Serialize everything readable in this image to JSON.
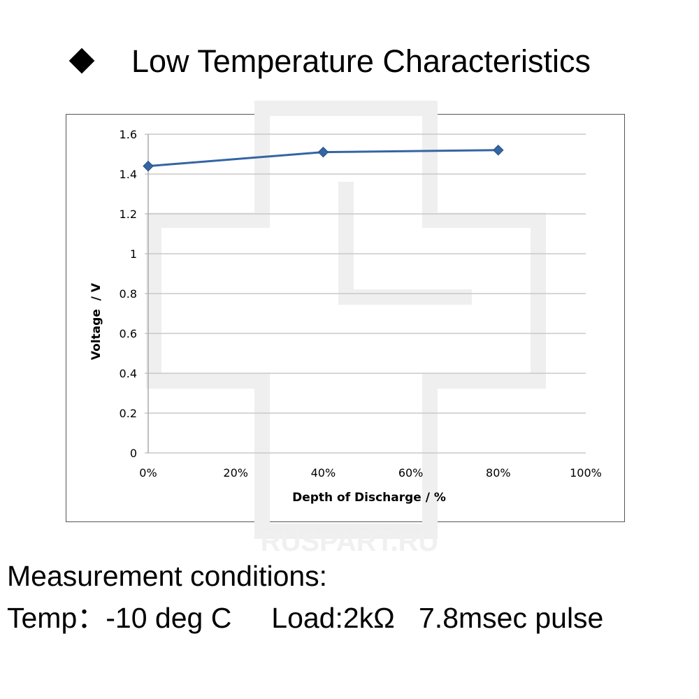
{
  "title": "Low Temperature Characteristics",
  "bullet_icon": "diamond-bullet-icon",
  "watermark": "RUSPART.RU",
  "conditions": {
    "heading": "Measurement conditions:",
    "line": "Temp：-10 deg C     Load:2kΩ   7.8msec pulse"
  },
  "colors": {
    "series": "#3465a4",
    "grid": "#c8c8c8"
  },
  "chart_data": {
    "type": "line",
    "title": "Low Temperature Characteristics",
    "xlabel": "Depth of Discharge / %",
    "ylabel": "Voltage  / V",
    "x": [
      0,
      40,
      80
    ],
    "series": [
      {
        "name": "Voltage",
        "values": [
          1.44,
          1.51,
          1.52
        ]
      }
    ],
    "xlim": [
      0,
      100
    ],
    "ylim": [
      0,
      1.6
    ],
    "x_ticks": [
      "0%",
      "20%",
      "40%",
      "60%",
      "80%",
      "100%"
    ],
    "y_ticks": [
      "0",
      "0.2",
      "0.4",
      "0.6",
      "0.8",
      "1",
      "1.2",
      "1.4",
      "1.6"
    ],
    "grid": true,
    "legend": "none"
  }
}
